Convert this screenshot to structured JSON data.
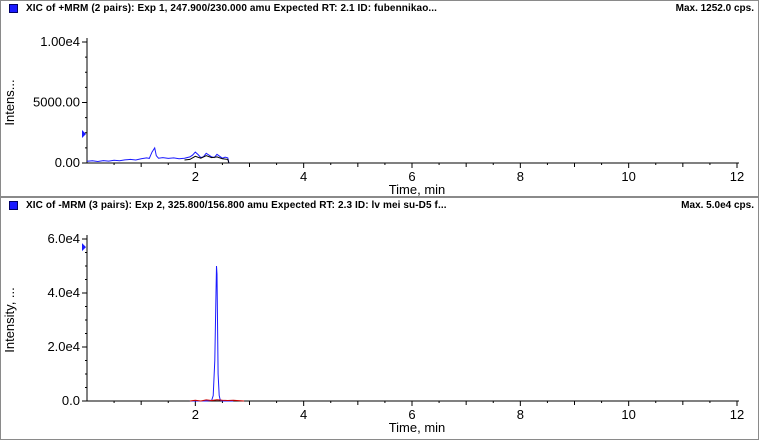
{
  "chart_data": [
    {
      "type": "line",
      "title": "XIC of +MRM (2 pairs): Exp 1, 247.900/230.000 amu Expected RT: 2.1 ID: fubennikao...",
      "max_label": "Max. 1252.0 cps.",
      "xlabel": "Time, min",
      "ylabel": "Intens...",
      "xlim": [
        0,
        12
      ],
      "ylim": [
        0,
        10000
      ],
      "x_ticks": [
        2,
        4,
        6,
        8,
        10,
        12
      ],
      "x_tick_labels": [
        "2",
        "4",
        "6",
        "8",
        "10",
        "12"
      ],
      "y_ticks": [
        0,
        5000,
        10000
      ],
      "y_tick_labels": [
        "0.00",
        "5000.00",
        "1.00e4"
      ],
      "expected_rt_marker_y": 2400,
      "series": [
        {
          "color": "#1a1aff",
          "x": [
            0.0,
            0.1,
            0.2,
            0.3,
            0.4,
            0.5,
            0.6,
            0.7,
            0.8,
            0.9,
            1.0,
            1.1,
            1.15,
            1.2,
            1.25,
            1.28,
            1.32,
            1.4,
            1.5,
            1.6,
            1.7,
            1.8,
            1.9,
            1.95,
            2.0,
            2.05,
            2.1,
            2.15,
            2.2,
            2.25,
            2.3,
            2.35,
            2.4,
            2.45,
            2.5,
            2.55,
            2.6,
            2.62
          ],
          "values": [
            150,
            180,
            120,
            200,
            160,
            220,
            190,
            260,
            300,
            250,
            350,
            420,
            380,
            900,
            1250,
            600,
            400,
            450,
            380,
            420,
            350,
            400,
            500,
            650,
            900,
            700,
            450,
            520,
            800,
            650,
            500,
            450,
            720,
            550,
            400,
            480,
            420,
            0
          ]
        },
        {
          "color": "#000000",
          "x": [
            1.8,
            1.9,
            2.0,
            2.1,
            2.2,
            2.3,
            2.4,
            2.5,
            2.6,
            2.62
          ],
          "values": [
            250,
            300,
            550,
            400,
            600,
            450,
            500,
            350,
            300,
            0
          ]
        }
      ]
    },
    {
      "type": "line",
      "title": "XIC of -MRM (3 pairs): Exp 2, 325.800/156.800 amu Expected RT: 2.3 ID: lv mei su-D5 f...",
      "max_label": "Max. 5.0e4 cps.",
      "xlabel": "Time, min",
      "ylabel": "Intensity, ...",
      "xlim": [
        0,
        12
      ],
      "ylim": [
        0,
        60000
      ],
      "x_ticks": [
        2,
        4,
        6,
        8,
        10,
        12
      ],
      "x_tick_labels": [
        "2",
        "4",
        "6",
        "8",
        "10",
        "12"
      ],
      "y_ticks": [
        0,
        20000,
        40000,
        60000
      ],
      "y_tick_labels": [
        "0.0",
        "2.0e4",
        "4.0e4",
        "6.0e4"
      ],
      "expected_rt_marker_y": 57000,
      "series": [
        {
          "color": "#1a1aff",
          "x": [
            1.9,
            2.2,
            2.3,
            2.33,
            2.36,
            2.38,
            2.39,
            2.4,
            2.41,
            2.42,
            2.44,
            2.46,
            2.5,
            2.7
          ],
          "values": [
            0,
            0,
            200,
            2000,
            15000,
            38000,
            50000,
            47000,
            30000,
            10000,
            2000,
            300,
            0,
            0
          ]
        },
        {
          "color": "#cc0000",
          "x": [
            1.9,
            2.0,
            2.1,
            2.2,
            2.3,
            2.4,
            2.5,
            2.6,
            2.7,
            2.8,
            2.9
          ],
          "values": [
            0,
            300,
            0,
            400,
            200,
            500,
            300,
            200,
            300,
            150,
            0
          ]
        }
      ]
    }
  ]
}
